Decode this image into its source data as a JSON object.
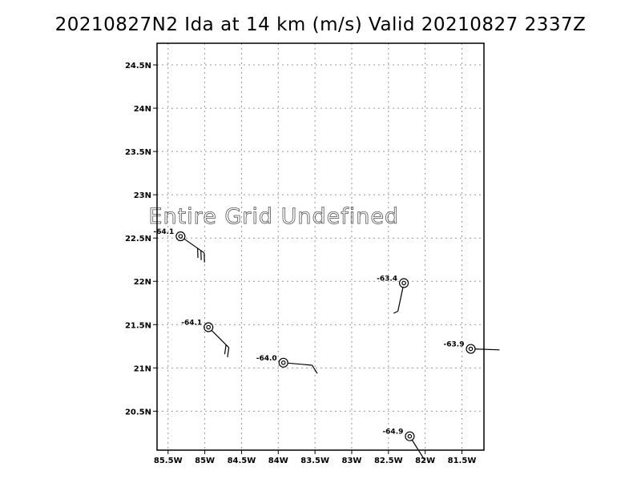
{
  "title": "20210827N2 Ida at 14 km (m/s) Valid 20210827 2337Z",
  "chart_data": {
    "type": "scatter",
    "title": "20210827N2 Ida at 14 km (m/s) Valid 20210827 2337Z",
    "xlabel": "",
    "ylabel": "",
    "xlim": [
      -85.65,
      -81.2
    ],
    "ylim": [
      20.05,
      24.75
    ],
    "grid": true,
    "grid_style": "dotted",
    "x_ticks": [
      -85.5,
      -85.0,
      -84.5,
      -84.0,
      -83.5,
      -83.0,
      -82.5,
      -82.0,
      -81.5
    ],
    "x_tick_labels": [
      "85.5W",
      "85W",
      "84.5W",
      "84W",
      "83.5W",
      "83W",
      "82.5W",
      "82W",
      "81.5W"
    ],
    "y_ticks": [
      20.5,
      21.0,
      21.5,
      22.0,
      22.5,
      23.0,
      23.5,
      24.0,
      24.5
    ],
    "y_tick_labels": [
      "20.5N",
      "21N",
      "21.5N",
      "22N",
      "22.5N",
      "23N",
      "23.5N",
      "24N",
      "24.5N"
    ],
    "annotation": "Entire Grid Undefined",
    "points": [
      {
        "lon": -85.33,
        "lat": 22.52,
        "label": "-64.1",
        "barb_dir": 125,
        "barbs": [
          1,
          1,
          1
        ]
      },
      {
        "lon": -84.95,
        "lat": 21.47,
        "label": "-64.1",
        "barb_dir": 135,
        "barbs": [
          1,
          1
        ]
      },
      {
        "lon": -83.93,
        "lat": 21.06,
        "label": "-64.0",
        "barb_dir": 95,
        "barbs": [
          1
        ]
      },
      {
        "lon": -82.29,
        "lat": 21.98,
        "label": "-63.4",
        "barb_dir": 192,
        "barbs": [
          0.5
        ]
      },
      {
        "lon": -81.38,
        "lat": 21.22,
        "label": "-63.9",
        "barb_dir": 92,
        "barbs": []
      },
      {
        "lon": -82.21,
        "lat": 20.21,
        "label": "-64.9",
        "barb_dir": 148,
        "barbs": []
      }
    ]
  }
}
